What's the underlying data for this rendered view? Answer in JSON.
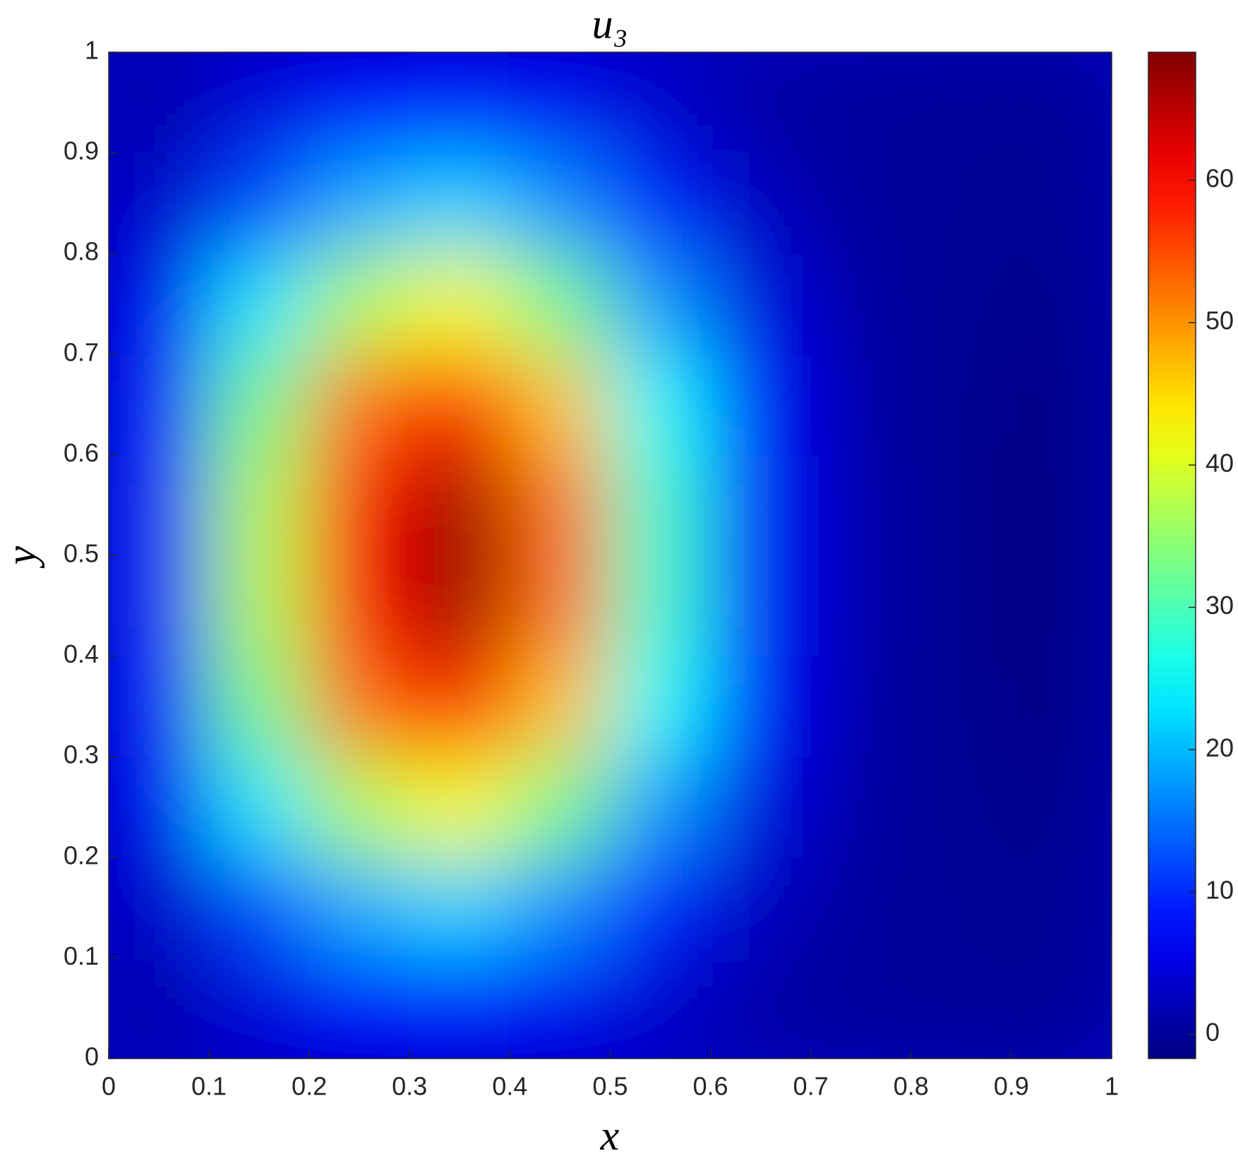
{
  "chart_data": {
    "type": "heatmap",
    "title": "u₃",
    "x_label": "x",
    "y_label": "y",
    "x": [
      0.05,
      0.15,
      0.25,
      0.35,
      0.45,
      0.55,
      0.65,
      0.75,
      0.85,
      0.95
    ],
    "y": [
      0.05,
      0.15,
      0.25,
      0.35,
      0.45,
      0.55,
      0.65,
      0.75,
      0.85,
      0.95
    ],
    "z": [
      [
        1.2,
        4.5,
        7.2,
        8.2,
        6.4,
        3.4,
        1.0,
        0.2,
        -0.1,
        -0.2
      ],
      [
        3.3,
        12.0,
        19.2,
        21.8,
        17.0,
        9.2,
        2.6,
        0.4,
        -0.2,
        -0.4
      ],
      [
        6.3,
        23.2,
        37.1,
        42.2,
        32.9,
        17.7,
        5.1,
        0.8,
        -0.4,
        -0.8
      ],
      [
        9.0,
        32.9,
        52.6,
        59.8,
        46.6,
        25.1,
        7.2,
        1.2,
        -0.6,
        -1.2
      ],
      [
        10.1,
        37.0,
        59.2,
        67.3,
        52.5,
        28.3,
        8.1,
        1.3,
        -0.7,
        -1.3
      ],
      [
        10.1,
        37.0,
        59.2,
        67.3,
        52.5,
        28.3,
        8.1,
        1.3,
        -0.7,
        -1.3
      ],
      [
        9.0,
        32.9,
        52.6,
        59.8,
        46.6,
        25.1,
        7.2,
        1.2,
        -0.6,
        -1.2
      ],
      [
        6.3,
        23.2,
        37.1,
        42.2,
        32.9,
        17.7,
        5.1,
        0.8,
        -0.4,
        -0.8
      ],
      [
        3.3,
        12.0,
        19.2,
        21.8,
        17.0,
        9.2,
        2.6,
        0.4,
        -0.2,
        -0.4
      ],
      [
        1.2,
        4.5,
        7.2,
        8.2,
        6.4,
        3.4,
        1.0,
        0.2,
        -0.1,
        -0.2
      ]
    ],
    "colormap": "jet",
    "clim": [
      -1.7,
      69
    ],
    "xlim": [
      0,
      1
    ],
    "ylim": [
      0,
      1
    ],
    "xticks": [
      0,
      0.1,
      0.2,
      0.3,
      0.4,
      0.5,
      0.6,
      0.7,
      0.8,
      0.9,
      1
    ],
    "yticks": [
      0,
      0.1,
      0.2,
      0.3,
      0.4,
      0.5,
      0.6,
      0.7,
      0.8,
      0.9,
      1
    ],
    "cticks": [
      0,
      10,
      20,
      30,
      40,
      50,
      60
    ]
  }
}
